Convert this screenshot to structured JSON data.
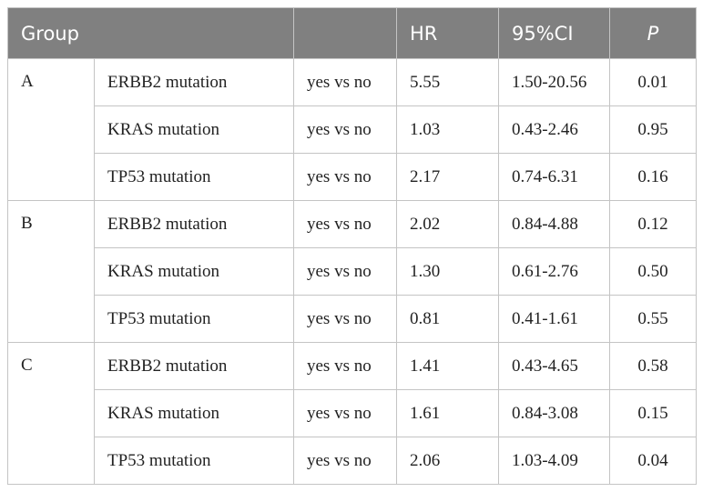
{
  "header": {
    "group": "Group",
    "hr": "HR",
    "ci": "95%CI",
    "p": "P"
  },
  "groups": [
    {
      "label": "A",
      "rows": [
        {
          "gene": "ERBB2 mutation",
          "comparison": "yes vs no",
          "hr": "5.55",
          "ci": "1.50-20.56",
          "p": "0.01"
        },
        {
          "gene": "KRAS mutation",
          "comparison": "yes vs no",
          "hr": "1.03",
          "ci": "0.43-2.46",
          "p": "0.95"
        },
        {
          "gene": "TP53 mutation",
          "comparison": "yes vs no",
          "hr": "2.17",
          "ci": "0.74-6.31",
          "p": "0.16"
        }
      ]
    },
    {
      "label": "B",
      "rows": [
        {
          "gene": "ERBB2 mutation",
          "comparison": "yes vs no",
          "hr": "2.02",
          "ci": "0.84-4.88",
          "p": "0.12"
        },
        {
          "gene": "KRAS mutation",
          "comparison": "yes vs no",
          "hr": "1.30",
          "ci": "0.61-2.76",
          "p": "0.50"
        },
        {
          "gene": "TP53 mutation",
          "comparison": "yes vs no",
          "hr": "0.81",
          "ci": "0.41-1.61",
          "p": "0.55"
        }
      ]
    },
    {
      "label": "C",
      "rows": [
        {
          "gene": "ERBB2 mutation",
          "comparison": "yes vs no",
          "hr": "1.41",
          "ci": "0.43-4.65",
          "p": "0.58"
        },
        {
          "gene": "KRAS mutation",
          "comparison": "yes vs no",
          "hr": "1.61",
          "ci": "0.84-3.08",
          "p": "0.15"
        },
        {
          "gene": "TP53 mutation",
          "comparison": "yes vs no",
          "hr": "2.06",
          "ci": "1.03-4.09",
          "p": "0.04"
        }
      ]
    }
  ]
}
